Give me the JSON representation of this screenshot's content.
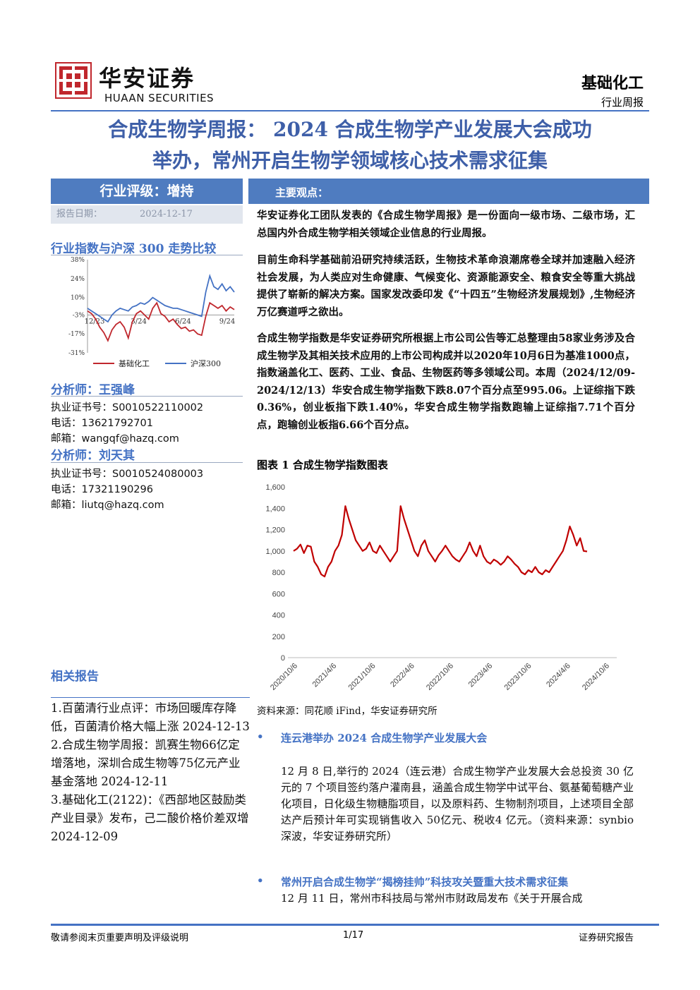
{
  "header": {
    "logo_cn": "华安证券",
    "logo_en": "HUAAN SECURITIES",
    "sector": "基础化工",
    "report_type": "行业周报",
    "brand_color": "#c0272d"
  },
  "title": {
    "line1": "合成生物学周报： 2024 合成生物学产业发展大会成功",
    "line2": "举办，常州开启生物学领域核心技术需求征集"
  },
  "sidebar": {
    "rating": "行业评级：增持",
    "date_label": "报告日期：",
    "date_value": "2024-12-17",
    "index_title": "行业指数与沪深 300 走势比较",
    "analyst1": {
      "title": "分析师：王强峰",
      "cert": "执业证书号：S0010522110002",
      "phone": "电话：13621792701",
      "email": "邮箱：wangqf@hazq.com"
    },
    "analyst2": {
      "title": "分析师：刘天其",
      "cert": "执业证书号：S0010524080003",
      "phone": "电话：17321190296",
      "email": "邮箱：liutq@hazq.com"
    },
    "related_title": "相关报告",
    "related": [
      "1.百菌清行业点评：市场回暖库存降低，百菌清价格大幅上涨 2024-12-13",
      "2.合成生物学周报：凯赛生物66亿定增落地，深圳合成生物等75亿元产业基金落地 2024-12-11",
      "3.基础化工(2122)：《西部地区鼓励类产业目录》发布，己二酸价格价差双增 2024-12-09"
    ]
  },
  "main": {
    "section_label": "主要观点：",
    "p1": "华安证券化工团队发表的《合成生物学周报》是一份面向一级市场、二级市场，汇总国内外合成生物学相关领域企业信息的行业周报。",
    "p2": "目前生命科学基础前沿研究持续活跃，生物技术革命浪潮席卷全球并加速融入经济社会发展，为人类应对生命健康、气候变化、资源能源安全、粮食安全等重大挑战提供了崭新的解决方案。国家发改委印发《“十四五”生物经济发展规划》,生物经济万亿赛道呼之欲出。",
    "p3": "合成生物学指数是华安证券研究所根据上市公司公告等汇总整理由58家业务涉及合成生物学及其相关技术应用的上市公司构成并以2020年10月6日为基准1000点，指数涵盖化工、医药、工业、食品、生物医药等多领域公司。本周（2024/12/09-2024/12/13）华安合成生物学指数下跌8.07个百分点至995.06。上证综指下跌0.36%，创业板指下跌1.40%，华安合成生物学指数跑输上证综指7.71个百分点，跑输创业板指6.66个百分点。",
    "figure_title": "图表 1 合成生物学指数图表",
    "figure_source": "资料来源：同花顺 iFind，华安证券研究所",
    "bullet1": "连云港举办 2024 合成生物学产业发展大会",
    "news1": "12 月 8 日,举行的 2024（连云港）合成生物学产业发展大会总投资 30 亿元的 7 个项目签约落户灌南县，涵盖合成生物学中试平台、氨基葡萄糖产业化项目，日化级生物糖脂项目，以及原料药、生物制剂项目，上述项目全部达产后预计年可实现销售收入 50亿元、税收4 亿元。（资料来源：synbio 深波，华安证券研究所）",
    "bullet2": "常州开启合成生物学“揭榜挂帅”科技攻关暨重大技术需求征集",
    "news2": "12 月 11 日，常州市科技局与常州市财政局发布《关于开展合成"
  },
  "footer": {
    "left": "敬请参阅末页重要声明及评级说明",
    "page": "1/17",
    "right": "证券研究报告"
  },
  "chart_data": [
    {
      "type": "line",
      "title": "行业指数与沪深 300 走势比较",
      "x_ticks": [
        "12/23",
        "3/24",
        "6/24",
        "9/24"
      ],
      "y_ticks": [
        "38%",
        "24%",
        "10%",
        "-3%",
        "-17%",
        "-31%"
      ],
      "ylim": [
        -31,
        38
      ],
      "legend_position": "bottom",
      "series": [
        {
          "name": "基础化工",
          "color": "#c0272d",
          "values": [
            0,
            -2,
            -6,
            -12,
            -16,
            -22,
            -14,
            -10,
            -8,
            -12,
            -20,
            -8,
            -2,
            0,
            -3,
            -6,
            2,
            6,
            -2,
            -4,
            -8,
            -6,
            -10,
            -13,
            -12,
            -15,
            -14,
            -17,
            -18,
            -4,
            6,
            4,
            2,
            4,
            0,
            3,
            1
          ]
        },
        {
          "name": "沪深300",
          "color": "#4472c4",
          "values": [
            2,
            0,
            -2,
            -4,
            -6,
            -8,
            -3,
            0,
            2,
            1,
            0,
            3,
            4,
            6,
            5,
            7,
            10,
            8,
            6,
            4,
            3,
            2,
            2,
            1,
            0,
            -1,
            -2,
            -3,
            -4,
            14,
            26,
            18,
            16,
            20,
            15,
            18,
            14
          ]
        }
      ]
    },
    {
      "type": "line",
      "title": "合成生物学指数图表",
      "x_ticks": [
        "2020/10/6",
        "2021/4/6",
        "2021/10/6",
        "2022/4/6",
        "2022/10/6",
        "2023/4/6",
        "2023/10/6",
        "2024/4/6",
        "2024/10/6"
      ],
      "y_ticks": [
        "1,600",
        "1,400",
        "1,200",
        "1,000",
        "800",
        "600",
        "400",
        "200",
        "0"
      ],
      "ylim": [
        0,
        1600
      ],
      "grid": false,
      "series": [
        {
          "name": "",
          "color": "#c00000",
          "values": [
            1000,
            1020,
            1060,
            980,
            1050,
            1040,
            900,
            850,
            780,
            760,
            850,
            900,
            1000,
            1050,
            1150,
            1420,
            1300,
            1200,
            1100,
            1050,
            1000,
            1020,
            1080,
            1000,
            980,
            1050,
            1000,
            950,
            900,
            950,
            1000,
            1420,
            1300,
            1200,
            1100,
            1000,
            950,
            1050,
            1100,
            1000,
            950,
            900,
            960,
            1000,
            1050,
            1000,
            950,
            920,
            900,
            950,
            1000,
            1080,
            1000,
            950,
            1050,
            950,
            900,
            880,
            920,
            900,
            870,
            900,
            950,
            920,
            880,
            850,
            800,
            780,
            820,
            800,
            850,
            800,
            780,
            820,
            800,
            850,
            900,
            950,
            1000,
            1100,
            1230,
            1150,
            1050,
            1120,
            1000,
            995
          ]
        }
      ]
    }
  ]
}
